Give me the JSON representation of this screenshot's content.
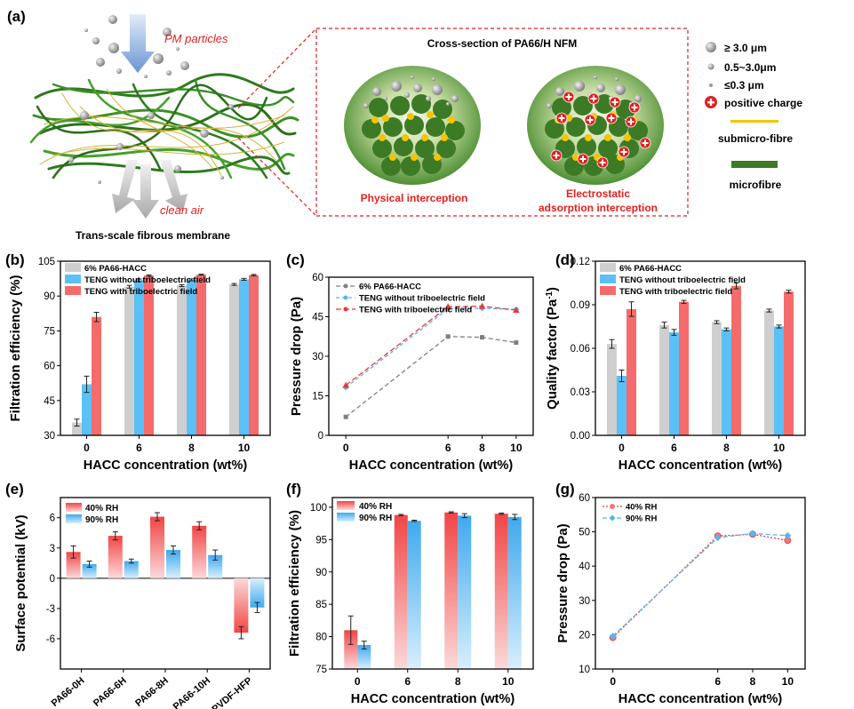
{
  "colors": {
    "gray": "#cfcfcf",
    "blue": "#5bc0f5",
    "red": "#f56b6b",
    "gray_line": "#808080",
    "blue_line": "#5bb3f0",
    "red_line": "#e83a3a",
    "annot_red": "#e22020",
    "fibre_yellow": "#f5c400",
    "fibre_green": "#3d7a26"
  },
  "panel_a": {
    "label": "(a)",
    "pm_particles": "PM particles",
    "clean_air": "clean air",
    "membrane_caption": "Trans-scale fibrous membrane",
    "box_title": "Cross-section of PA66/H NFM",
    "physical": "Physical interception",
    "electrostatic_1": "Electrostatic",
    "electrostatic_2": "adsorption interception",
    "legend": {
      "large": "≥ 3.0 μm",
      "medium": "0.5~3.0μm",
      "small": "≤0.3 μm",
      "charge": "positive charge",
      "submicro": "submicro-fibre",
      "micro": "microfibre"
    }
  },
  "chart_data": [
    {
      "id": "b",
      "label": "(b)",
      "type": "bar",
      "xlabel": "HACC concentration (wt%)",
      "ylabel": "Filtration efficiency (%)",
      "categories": [
        "0",
        "6",
        "8",
        "10"
      ],
      "ylim": [
        30,
        105
      ],
      "yticks": [
        30,
        45,
        60,
        75,
        90,
        105
      ],
      "series": [
        {
          "name": "6% PA66-HACC",
          "values": [
            35.5,
            94.0,
            94.5,
            95.0
          ],
          "errors": [
            1.5,
            0.6,
            0.4,
            0.4
          ]
        },
        {
          "name": "TENG without triboelectric field",
          "values": [
            52.0,
            96.8,
            97.0,
            97.2
          ],
          "errors": [
            3.5,
            0.5,
            0.4,
            0.4
          ]
        },
        {
          "name": "TENG with triboelectric field",
          "values": [
            81.0,
            98.8,
            99.2,
            99.0
          ],
          "errors": [
            2.0,
            0.3,
            0.2,
            0.3
          ]
        }
      ]
    },
    {
      "id": "c",
      "label": "(c)",
      "type": "line",
      "xlabel": "HACC concentration (wt%)",
      "ylabel": "Pressure drop (Pa)",
      "x": [
        0,
        6,
        8,
        10
      ],
      "xticks": [
        "0",
        "6",
        "8",
        "10"
      ],
      "ylim": [
        0,
        60
      ],
      "yticks": [
        0,
        15,
        30,
        45,
        60
      ],
      "series": [
        {
          "name": "6% PA66-HACC",
          "values": [
            7,
            37.5,
            37.2,
            35.2
          ]
        },
        {
          "name": "TENG without triboelectric field",
          "values": [
            18.2,
            48.0,
            48.2,
            47.8
          ]
        },
        {
          "name": "TENG with triboelectric field",
          "values": [
            19.0,
            48.8,
            49.0,
            47.5
          ]
        }
      ]
    },
    {
      "id": "d",
      "label": "(d)",
      "type": "bar",
      "xlabel": "HACC concentration (wt%)",
      "ylabel": "Quality factor (Pa",
      "ylabel_sup": "-1",
      "ylabel_end": ")",
      "categories": [
        "0",
        "6",
        "8",
        "10"
      ],
      "ylim": [
        0,
        0.12
      ],
      "yticks": [
        "0.00",
        "0.03",
        "0.06",
        "0.09",
        "0.12"
      ],
      "series": [
        {
          "name": "6% PA66-HACC",
          "values": [
            0.063,
            0.076,
            0.078,
            0.086
          ],
          "errors": [
            0.003,
            0.002,
            0.001,
            0.001
          ]
        },
        {
          "name": "TENG without triboelectric field",
          "values": [
            0.041,
            0.071,
            0.073,
            0.075
          ],
          "errors": [
            0.004,
            0.002,
            0.001,
            0.001
          ]
        },
        {
          "name": "TENG with triboelectric field",
          "values": [
            0.087,
            0.092,
            0.103,
            0.099
          ],
          "errors": [
            0.005,
            0.001,
            0.002,
            0.001
          ]
        }
      ]
    },
    {
      "id": "e",
      "label": "(e)",
      "type": "bar",
      "ylabel": "Surface potential (kV)",
      "categories": [
        "PA66-0H",
        "PA66-6H",
        "PA66-8H",
        "PA66-10H",
        "PVDF-HFP"
      ],
      "ylim": [
        -9,
        8
      ],
      "yticks": [
        -6,
        -3,
        0,
        3,
        6
      ],
      "series": [
        {
          "name": "40% RH",
          "values": [
            2.6,
            4.2,
            6.1,
            5.2,
            -5.4
          ],
          "errors": [
            0.6,
            0.4,
            0.4,
            0.4,
            0.6
          ]
        },
        {
          "name": "90% RH",
          "values": [
            1.4,
            1.7,
            2.8,
            2.3,
            -2.9
          ],
          "errors": [
            0.3,
            0.2,
            0.4,
            0.5,
            0.5
          ]
        }
      ]
    },
    {
      "id": "f",
      "label": "(f)",
      "type": "bar",
      "xlabel": "HACC concentration (wt%)",
      "ylabel": "Filtration efficiency (%)",
      "categories": [
        "0",
        "6",
        "8",
        "10"
      ],
      "ylim": [
        75,
        101.5
      ],
      "yticks": [
        75,
        80,
        85,
        90,
        95,
        100
      ],
      "series": [
        {
          "name": "40% RH",
          "values": [
            81.0,
            98.8,
            99.2,
            99.0
          ],
          "errors": [
            2.2,
            0.1,
            0.1,
            0.1
          ]
        },
        {
          "name": "90% RH",
          "values": [
            78.7,
            97.9,
            98.7,
            98.5
          ],
          "errors": [
            0.6,
            0.1,
            0.3,
            0.4
          ]
        }
      ]
    },
    {
      "id": "g",
      "label": "(g)",
      "type": "line",
      "xlabel": "HACC concentration (wt%)",
      "ylabel": "Pressure drop (Pa)",
      "x": [
        0,
        6,
        8,
        10
      ],
      "xticks": [
        "0",
        "6",
        "8",
        "10"
      ],
      "ylim": [
        10,
        60
      ],
      "yticks": [
        10,
        20,
        30,
        40,
        50,
        60
      ],
      "series": [
        {
          "name": "40% RH",
          "values": [
            19.2,
            48.8,
            49.3,
            47.5
          ]
        },
        {
          "name": "90% RH",
          "values": [
            19.6,
            48.3,
            49.5,
            48.9
          ]
        }
      ]
    }
  ]
}
